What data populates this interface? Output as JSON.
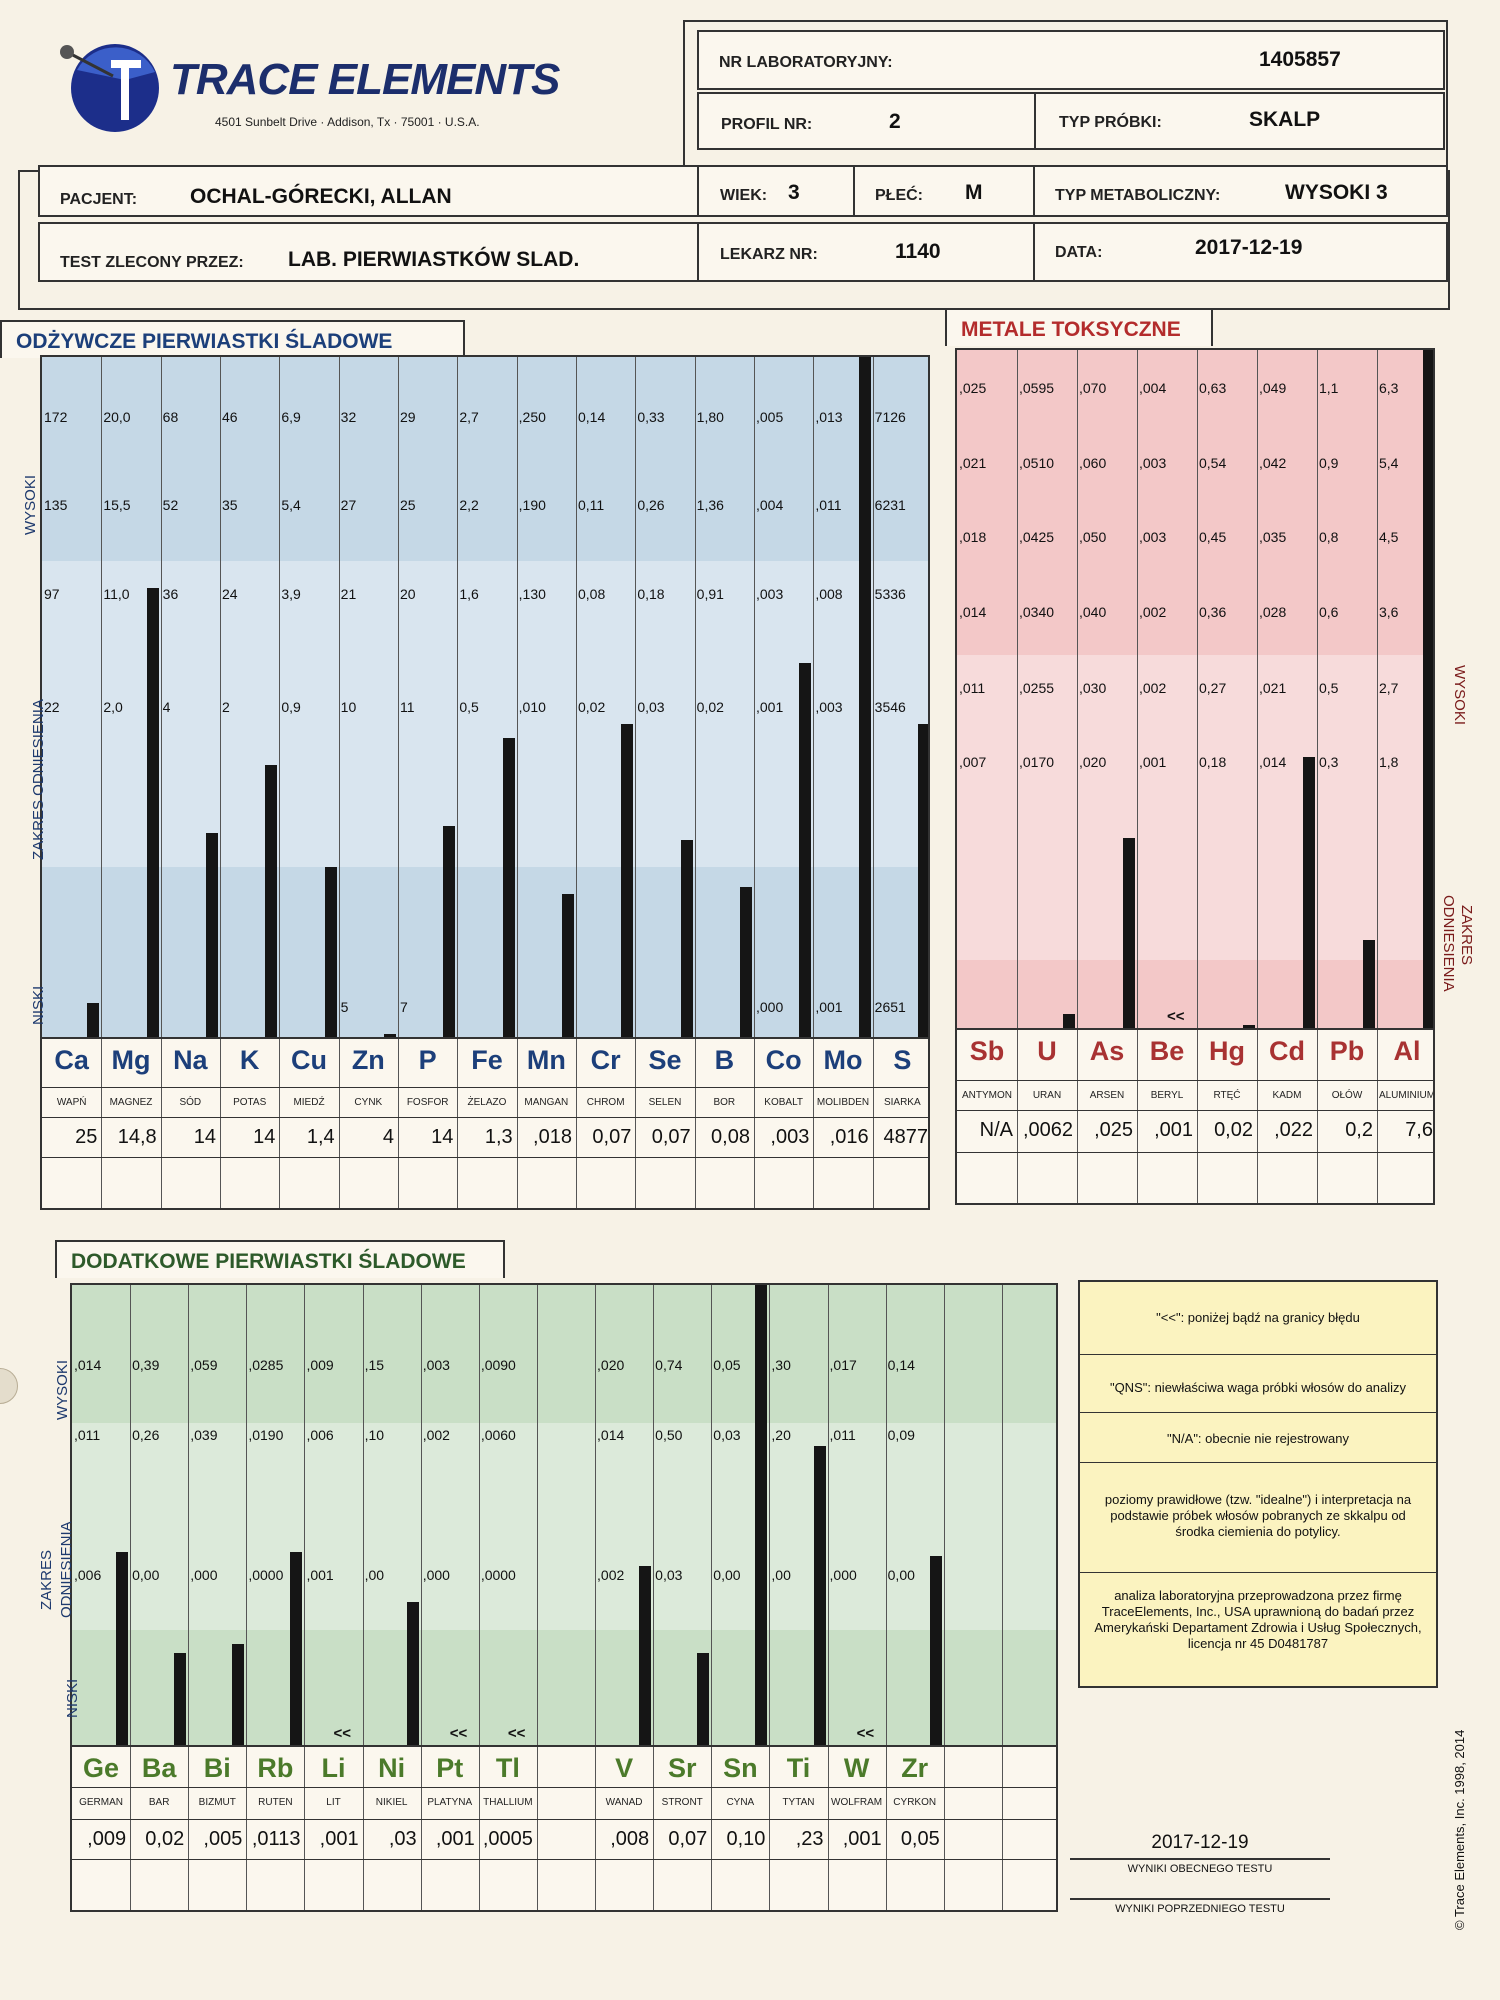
{
  "header": {
    "brand": "TRACE ELEMENTS",
    "address": "4501 Sunbelt Drive · Addison, Tx · 75001 · U.S.A.",
    "lab_label": "NR LABORATORYJNY:",
    "lab_value": "1405857",
    "profile_label": "PROFIL NR:",
    "profile_value": "2",
    "sample_label": "TYP PRÓBKI:",
    "sample_value": "SKALP",
    "patient_label": "PACJENT:",
    "patient_value": "OCHAL-GÓRECKI, ALLAN",
    "age_label": "WIEK:",
    "age_value": "3",
    "sex_label": "PŁEĆ:",
    "sex_value": "M",
    "meta_label": "TYP METABOLICZNY:",
    "meta_value": "WYSOKI 3",
    "ordered_label": "TEST ZLECONY PRZEZ:",
    "ordered_value": "LAB. PIERWIASTKÓW SLAD.",
    "doctor_label": "LEKARZ NR:",
    "doctor_value": "1140",
    "date_label": "DATA:",
    "date_value": "2017-12-19"
  },
  "axis_labels": {
    "high": "WYSOKI",
    "range": "ZAKRES ODNIESIENIA",
    "range_line1": "ZAKRES",
    "range_line2": "ODNIESIENIA",
    "low": "NISKI"
  },
  "colors": {
    "nutrient_bg": "#c5d8e6",
    "toxic_bg": "#f3c8c8",
    "additional_bg": "#c9dfc6",
    "bar": "#151515",
    "nutrient_sym": "#1c3f7a",
    "toxic_sym": "#a83232",
    "additional_sym": "#4b7a2a"
  },
  "chart_data": [
    {
      "type": "bar",
      "title": "ODŻYWCZE PIERWIASTKI ŚLADOWE",
      "ylabel": "ZAKRES ODNIESIENIA",
      "level_labels": [
        "NISKI",
        "ZAKRES ODNIESIENIA",
        "WYSOKI"
      ],
      "elements": [
        {
          "symbol": "Ca",
          "name": "WAPŃ",
          "ticks": [
            "22",
            "97",
            "135",
            "172"
          ],
          "result": "25",
          "level": 0.05
        },
        {
          "symbol": "Mg",
          "name": "MAGNEZ",
          "ticks": [
            "2,0",
            "11,0",
            "15,5",
            "20,0"
          ],
          "result": "14,8",
          "level": 0.66
        },
        {
          "symbol": "Na",
          "name": "SÓD",
          "ticks": [
            "4",
            "36",
            "52",
            "68"
          ],
          "result": "14",
          "level": 0.3
        },
        {
          "symbol": "K",
          "name": "POTAS",
          "ticks": [
            "2",
            "24",
            "35",
            "46"
          ],
          "result": "14",
          "level": 0.4
        },
        {
          "symbol": "Cu",
          "name": "MIEDŹ",
          "ticks": [
            "0,9",
            "3,9",
            "5,4",
            "6,9"
          ],
          "result": "1,4",
          "level": 0.25
        },
        {
          "symbol": "Zn",
          "name": "CYNK",
          "ticks": [
            "5",
            "10",
            "21",
            "27",
            "32"
          ],
          "result": "4",
          "level": 0.005
        },
        {
          "symbol": "P",
          "name": "FOSFOR",
          "ticks": [
            "7",
            "11",
            "20",
            "25",
            "29"
          ],
          "result": "14",
          "level": 0.31
        },
        {
          "symbol": "Fe",
          "name": "ŻELAZO",
          "ticks": [
            "0,5",
            "1,6",
            "2,2",
            "2,7"
          ],
          "result": "1,3",
          "level": 0.44
        },
        {
          "symbol": "Mn",
          "name": "MANGAN",
          "ticks": [
            ",010",
            ",130",
            ",190",
            ",250"
          ],
          "result": ",018",
          "level": 0.21
        },
        {
          "symbol": "Cr",
          "name": "CHROM",
          "ticks": [
            "0,02",
            "0,08",
            "0,11",
            "0,14"
          ],
          "result": "0,07",
          "level": 0.46
        },
        {
          "symbol": "Se",
          "name": "SELEN",
          "ticks": [
            "0,03",
            "0,18",
            "0,26",
            "0,33"
          ],
          "result": "0,07",
          "level": 0.29
        },
        {
          "symbol": "B",
          "name": "BOR",
          "ticks": [
            "0,02",
            "0,91",
            "1,36",
            "1,80"
          ],
          "result": "0,08",
          "level": 0.22
        },
        {
          "symbol": "Co",
          "name": "KOBALT",
          "ticks": [
            ",000",
            ",001",
            ",003",
            ",004",
            ",005"
          ],
          "result": ",003",
          "level": 0.55
        },
        {
          "symbol": "Mo",
          "name": "MOLIBDEN",
          "ticks": [
            ",001",
            ",003",
            ",008",
            ",011",
            ",013"
          ],
          "result": ",016",
          "level": 1.0
        },
        {
          "symbol": "S",
          "name": "SIARKA",
          "ticks": [
            "2651",
            "3546",
            "5336",
            "6231",
            "7126"
          ],
          "result": "4877",
          "level": 0.46
        }
      ]
    },
    {
      "type": "bar",
      "title": "METALE TOKSYCZNE",
      "level_labels": [
        "ZAKRES ODNIESIENIA",
        "WYSOKI"
      ],
      "elements": [
        {
          "symbol": "Sb",
          "name": "ANTYMON",
          "ticks": [
            ",007",
            ",011",
            ",014",
            ",018",
            ",021",
            ",025"
          ],
          "result": "N/A",
          "level": 0
        },
        {
          "symbol": "U",
          "name": "URAN",
          "ticks": [
            ",0170",
            ",0255",
            ",0340",
            ",0425",
            ",0510",
            ",0595"
          ],
          "result": ",0062",
          "level": 0.02
        },
        {
          "symbol": "As",
          "name": "ARSEN",
          "ticks": [
            ",020",
            ",030",
            ",040",
            ",050",
            ",060",
            ",070"
          ],
          "result": ",025",
          "level": 0.28
        },
        {
          "symbol": "Be",
          "name": "BERYL",
          "ticks": [
            ",001",
            ",002",
            ",002",
            ",003",
            ",003",
            ",004"
          ],
          "result": ",001",
          "level": 0,
          "below_limit": "<<"
        },
        {
          "symbol": "Hg",
          "name": "RTĘĆ",
          "ticks": [
            "0,18",
            "0,27",
            "0,36",
            "0,45",
            "0,54",
            "0,63"
          ],
          "result": "0,02",
          "level": 0.004
        },
        {
          "symbol": "Cd",
          "name": "KADM",
          "ticks": [
            ",014",
            ",021",
            ",028",
            ",035",
            ",042",
            ",049"
          ],
          "result": ",022",
          "level": 0.4
        },
        {
          "symbol": "Pb",
          "name": "OŁÓW",
          "ticks": [
            "0,3",
            "0,5",
            "0,6",
            "0,8",
            "0,9",
            "1,1"
          ],
          "result": "0,2",
          "level": 0.13
        },
        {
          "symbol": "Al",
          "name": "ALUMINIUM",
          "ticks": [
            "1,8",
            "2,7",
            "3,6",
            "4,5",
            "5,4",
            "6,3"
          ],
          "result": "7,6",
          "level": 1.0
        }
      ]
    },
    {
      "type": "bar",
      "title": "DODATKOWE PIERWIASTKI ŚLADOWE",
      "level_labels": [
        "NISKI",
        "ZAKRES ODNIESIENIA",
        "WYSOKI"
      ],
      "elements": [
        {
          "symbol": "Ge",
          "name": "GERMAN",
          "ticks": [
            ",006",
            ",011",
            ",014"
          ],
          "result": ",009",
          "level": 0.42
        },
        {
          "symbol": "Ba",
          "name": "BAR",
          "ticks": [
            "0,00",
            "0,26",
            "0,39"
          ],
          "result": "0,02",
          "level": 0.2
        },
        {
          "symbol": "Bi",
          "name": "BIZMUT",
          "ticks": [
            ",000",
            ",039",
            ",059"
          ],
          "result": ",005",
          "level": 0.22
        },
        {
          "symbol": "Rb",
          "name": "RUTEN",
          "ticks": [
            ",0000",
            ",0190",
            ",0285"
          ],
          "result": ",0113",
          "level": 0.42
        },
        {
          "symbol": "Li",
          "name": "LIT",
          "ticks": [
            ",001",
            ",006",
            ",009"
          ],
          "result": ",001",
          "level": 0,
          "below_limit": "<<"
        },
        {
          "symbol": "Ni",
          "name": "NIKIEL",
          "ticks": [
            ",00",
            ",10",
            ",15"
          ],
          "result": ",03",
          "level": 0.31
        },
        {
          "symbol": "Pt",
          "name": "PLATYNA",
          "ticks": [
            ",000",
            ",002",
            ",003"
          ],
          "result": ",001",
          "level": 0,
          "below_limit": "<<"
        },
        {
          "symbol": "Tl",
          "name": "THALLIUM",
          "ticks": [
            ",0000",
            ",0060",
            ",0090"
          ],
          "result": ",0005",
          "level": 0,
          "below_limit": "<<"
        },
        {
          "symbol": "",
          "name": "",
          "ticks": [],
          "result": "",
          "level": 0
        },
        {
          "symbol": "V",
          "name": "WANAD",
          "ticks": [
            ",002",
            ",014",
            ",020"
          ],
          "result": ",008",
          "level": 0.39
        },
        {
          "symbol": "Sr",
          "name": "STRONT",
          "ticks": [
            "0,03",
            "0,50",
            "0,74"
          ],
          "result": "0,07",
          "level": 0.2
        },
        {
          "symbol": "Sn",
          "name": "CYNA",
          "ticks": [
            "0,00",
            "0,03",
            "0,05"
          ],
          "result": "0,10",
          "level": 1.0
        },
        {
          "symbol": "Ti",
          "name": "TYTAN",
          "ticks": [
            ",00",
            ",20",
            ",30"
          ],
          "result": ",23",
          "level": 0.65
        },
        {
          "symbol": "W",
          "name": "WOLFRAM",
          "ticks": [
            ",000",
            ",011",
            ",017"
          ],
          "result": ",001",
          "level": 0,
          "below_limit": "<<"
        },
        {
          "symbol": "Zr",
          "name": "CYRKON",
          "ticks": [
            "0,00",
            "0,09",
            "0,14"
          ],
          "result": "0,05",
          "level": 0.41
        },
        {
          "symbol": "",
          "name": "",
          "ticks": [],
          "result": "",
          "level": 0
        },
        {
          "symbol": "",
          "name": "",
          "ticks": [],
          "result": "",
          "level": 0
        }
      ]
    }
  ],
  "notes": {
    "n1": "\"<<\":  poniżej bądź na granicy błędu",
    "n2": "\"QNS\":  niewłaściwa waga próbki włosów do analizy",
    "n3": "\"N/A\": obecnie nie rejestrowany",
    "n4": "poziomy prawidłowe (tzw. \"idealne\") i interpretacja na podstawie próbek włosów pobranych ze skkalpu od środka ciemienia do potylicy.",
    "n5": "analiza laboratoryjna przeprowadzona przez firmę TraceElements, Inc., USA uprawnioną do badań przez Amerykański Departament Zdrowia i Usług Społecznych, licencja nr 45 D0481787"
  },
  "footer": {
    "current_date": "2017-12-19",
    "current_label": "WYNIKI OBECNEGO TESTU",
    "previous_label": "WYNIKI POPRZEDNIEGO TESTU",
    "copyright": "© Trace Elements, Inc. 1998, 2014"
  }
}
